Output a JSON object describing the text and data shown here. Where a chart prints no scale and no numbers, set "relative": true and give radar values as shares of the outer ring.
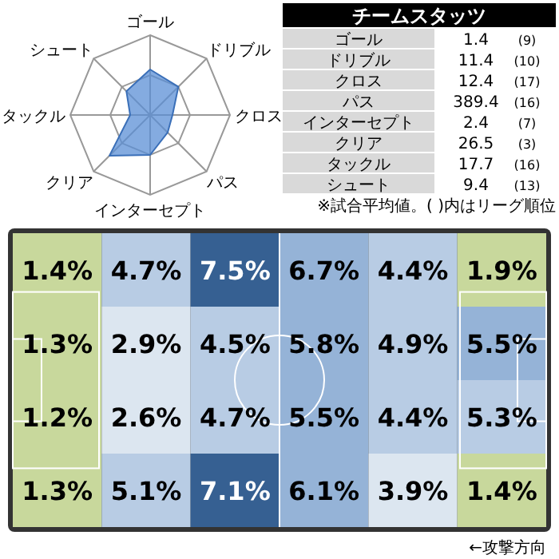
{
  "chart_data": [
    {
      "type": "radar",
      "categories": [
        "ゴール",
        "ドリブル",
        "クロス",
        "パス",
        "インターセプト",
        "クリア",
        "タックル",
        "シュート"
      ],
      "relative": true,
      "grid": true,
      "series": [
        {
          "color": "#5b8fd6",
          "values": [
            0.57,
            0.5,
            0.28,
            0.31,
            0.5,
            0.72,
            0.25,
            0.42
          ]
        }
      ]
    },
    {
      "type": "other",
      "title": "チームスタッツ",
      "categories": [
        "ゴール",
        "ドリブル",
        "クロス",
        "パス",
        "インターセプト",
        "クリア",
        "タックル",
        "シュート"
      ],
      "series": [
        {
          "values": [
            1.4,
            11.4,
            12.4,
            389.4,
            2.4,
            26.5,
            17.7,
            9.4
          ],
          "value_labels": [
            "1.4",
            "11.4",
            "12.4",
            "389.4",
            "2.4",
            "26.5",
            "17.7",
            "9.4"
          ]
        },
        {
          "values": [
            9,
            10,
            17,
            16,
            7,
            3,
            16,
            13
          ],
          "value_labels": [
            "(9)",
            "(10)",
            "(17)",
            "(16)",
            "(7)",
            "(3)",
            "(16)",
            "(13)"
          ]
        }
      ],
      "annotations": [
        "※試合平均値。( )内はリーグ順位"
      ]
    },
    {
      "type": "heatmap",
      "categories": [
        null,
        null,
        null,
        null,
        null,
        null
      ],
      "y_categories": [
        null,
        null,
        null,
        null
      ],
      "cells": [
        [
          1.4,
          4.7,
          7.5,
          6.7,
          4.4,
          1.9
        ],
        [
          1.3,
          2.9,
          4.5,
          5.8,
          4.9,
          5.5
        ],
        [
          1.2,
          2.6,
          4.7,
          5.5,
          4.4,
          5.3
        ],
        [
          1.3,
          5.1,
          7.1,
          6.1,
          3.9,
          1.4
        ]
      ],
      "cell_labels": [
        [
          "1.4%",
          "4.7%",
          "7.5%",
          "6.7%",
          "4.4%",
          "1.9%"
        ],
        [
          "1.3%",
          "2.9%",
          "4.5%",
          "5.8%",
          "4.9%",
          "5.5%"
        ],
        [
          "1.2%",
          "2.6%",
          "4.7%",
          "5.5%",
          "4.4%",
          "5.3%"
        ],
        [
          "1.3%",
          "5.1%",
          "7.1%",
          "6.1%",
          "3.9%",
          "1.4%"
        ]
      ],
      "annotations": [
        "←攻撃方向"
      ]
    }
  ]
}
